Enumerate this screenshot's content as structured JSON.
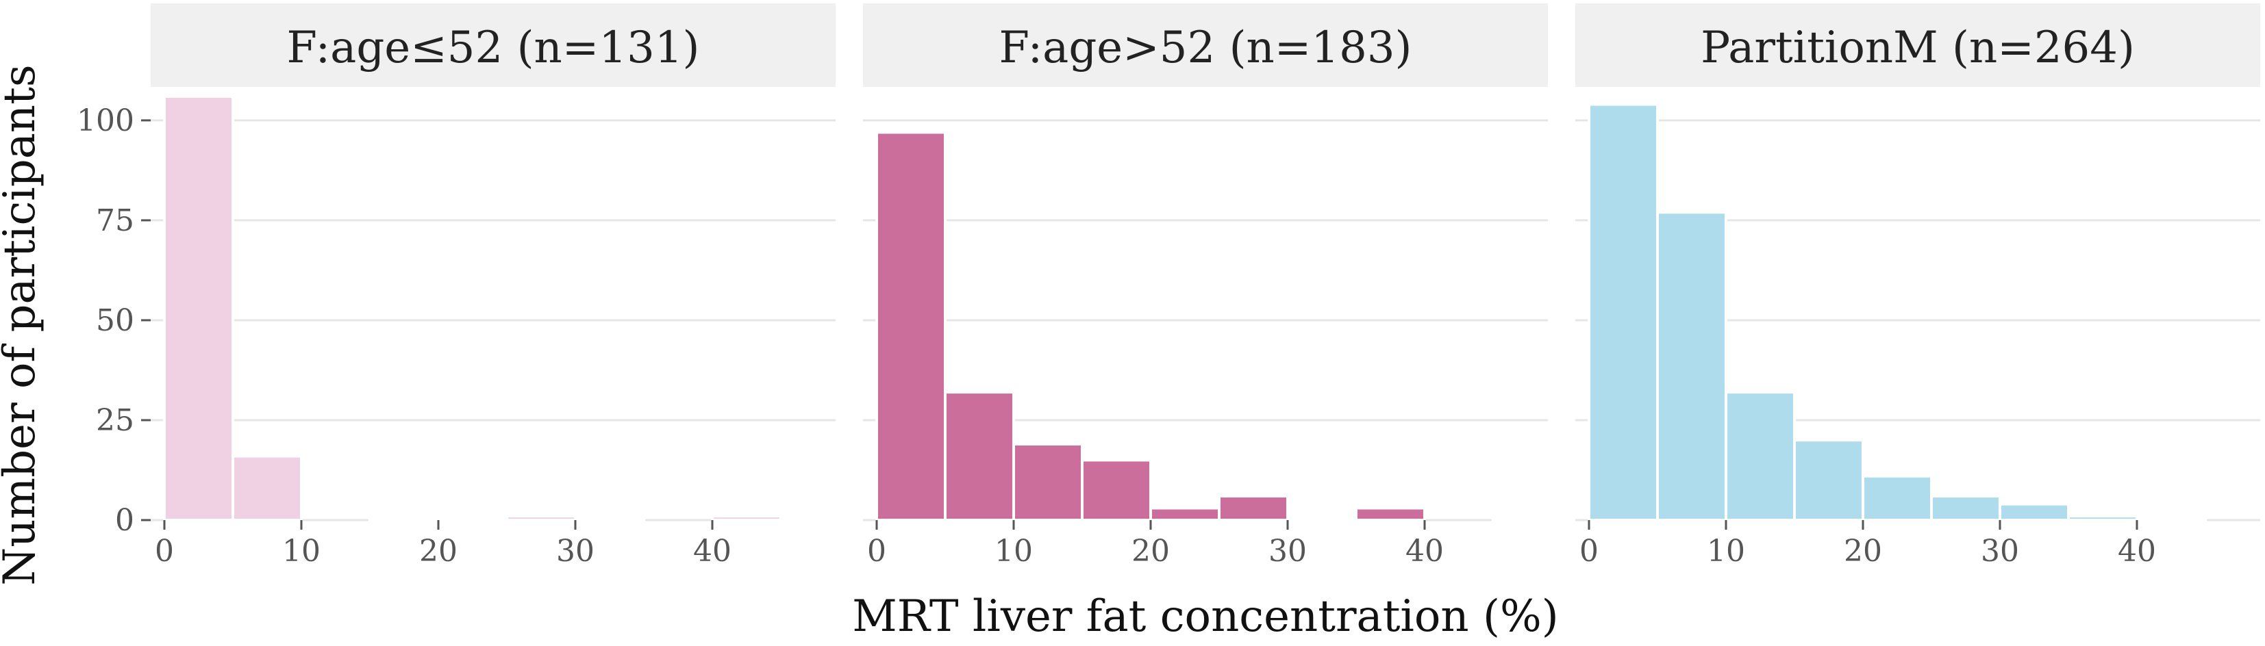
{
  "chart_data": {
    "type": "bar",
    "xlabel": "MRT liver fat concentration (%)",
    "ylabel": "Number of participants",
    "xlim": [
      -1,
      49
    ],
    "ylim": [
      0,
      107
    ],
    "bin_width": 5,
    "x_ticks": [
      0,
      10,
      20,
      30,
      40
    ],
    "y_ticks": [
      0,
      25,
      50,
      75,
      100
    ],
    "grid": true,
    "panels": [
      {
        "title": "F:age≤52 (n=131)",
        "color": "#f0d0e3",
        "bin_starts": [
          0,
          5,
          10,
          15,
          20,
          25,
          30,
          35,
          40,
          45
        ],
        "values": [
          106,
          16,
          0,
          0.5,
          0.5,
          1,
          0.5,
          0,
          1,
          0.5
        ]
      },
      {
        "title": "F:age>52 (n=183)",
        "color": "#cc6e9c",
        "bin_starts": [
          0,
          5,
          10,
          15,
          20,
          25,
          30,
          35,
          40,
          45
        ],
        "values": [
          97,
          32,
          19,
          15,
          3,
          6,
          0.5,
          3,
          0,
          0.5
        ]
      },
      {
        "title": "PartitionM (n=264)",
        "color": "#aedced",
        "bin_starts": [
          0,
          5,
          10,
          15,
          20,
          25,
          30,
          35,
          40,
          45
        ],
        "values": [
          104,
          77,
          32,
          20,
          11,
          6,
          4,
          1,
          0.5,
          0
        ]
      }
    ]
  }
}
